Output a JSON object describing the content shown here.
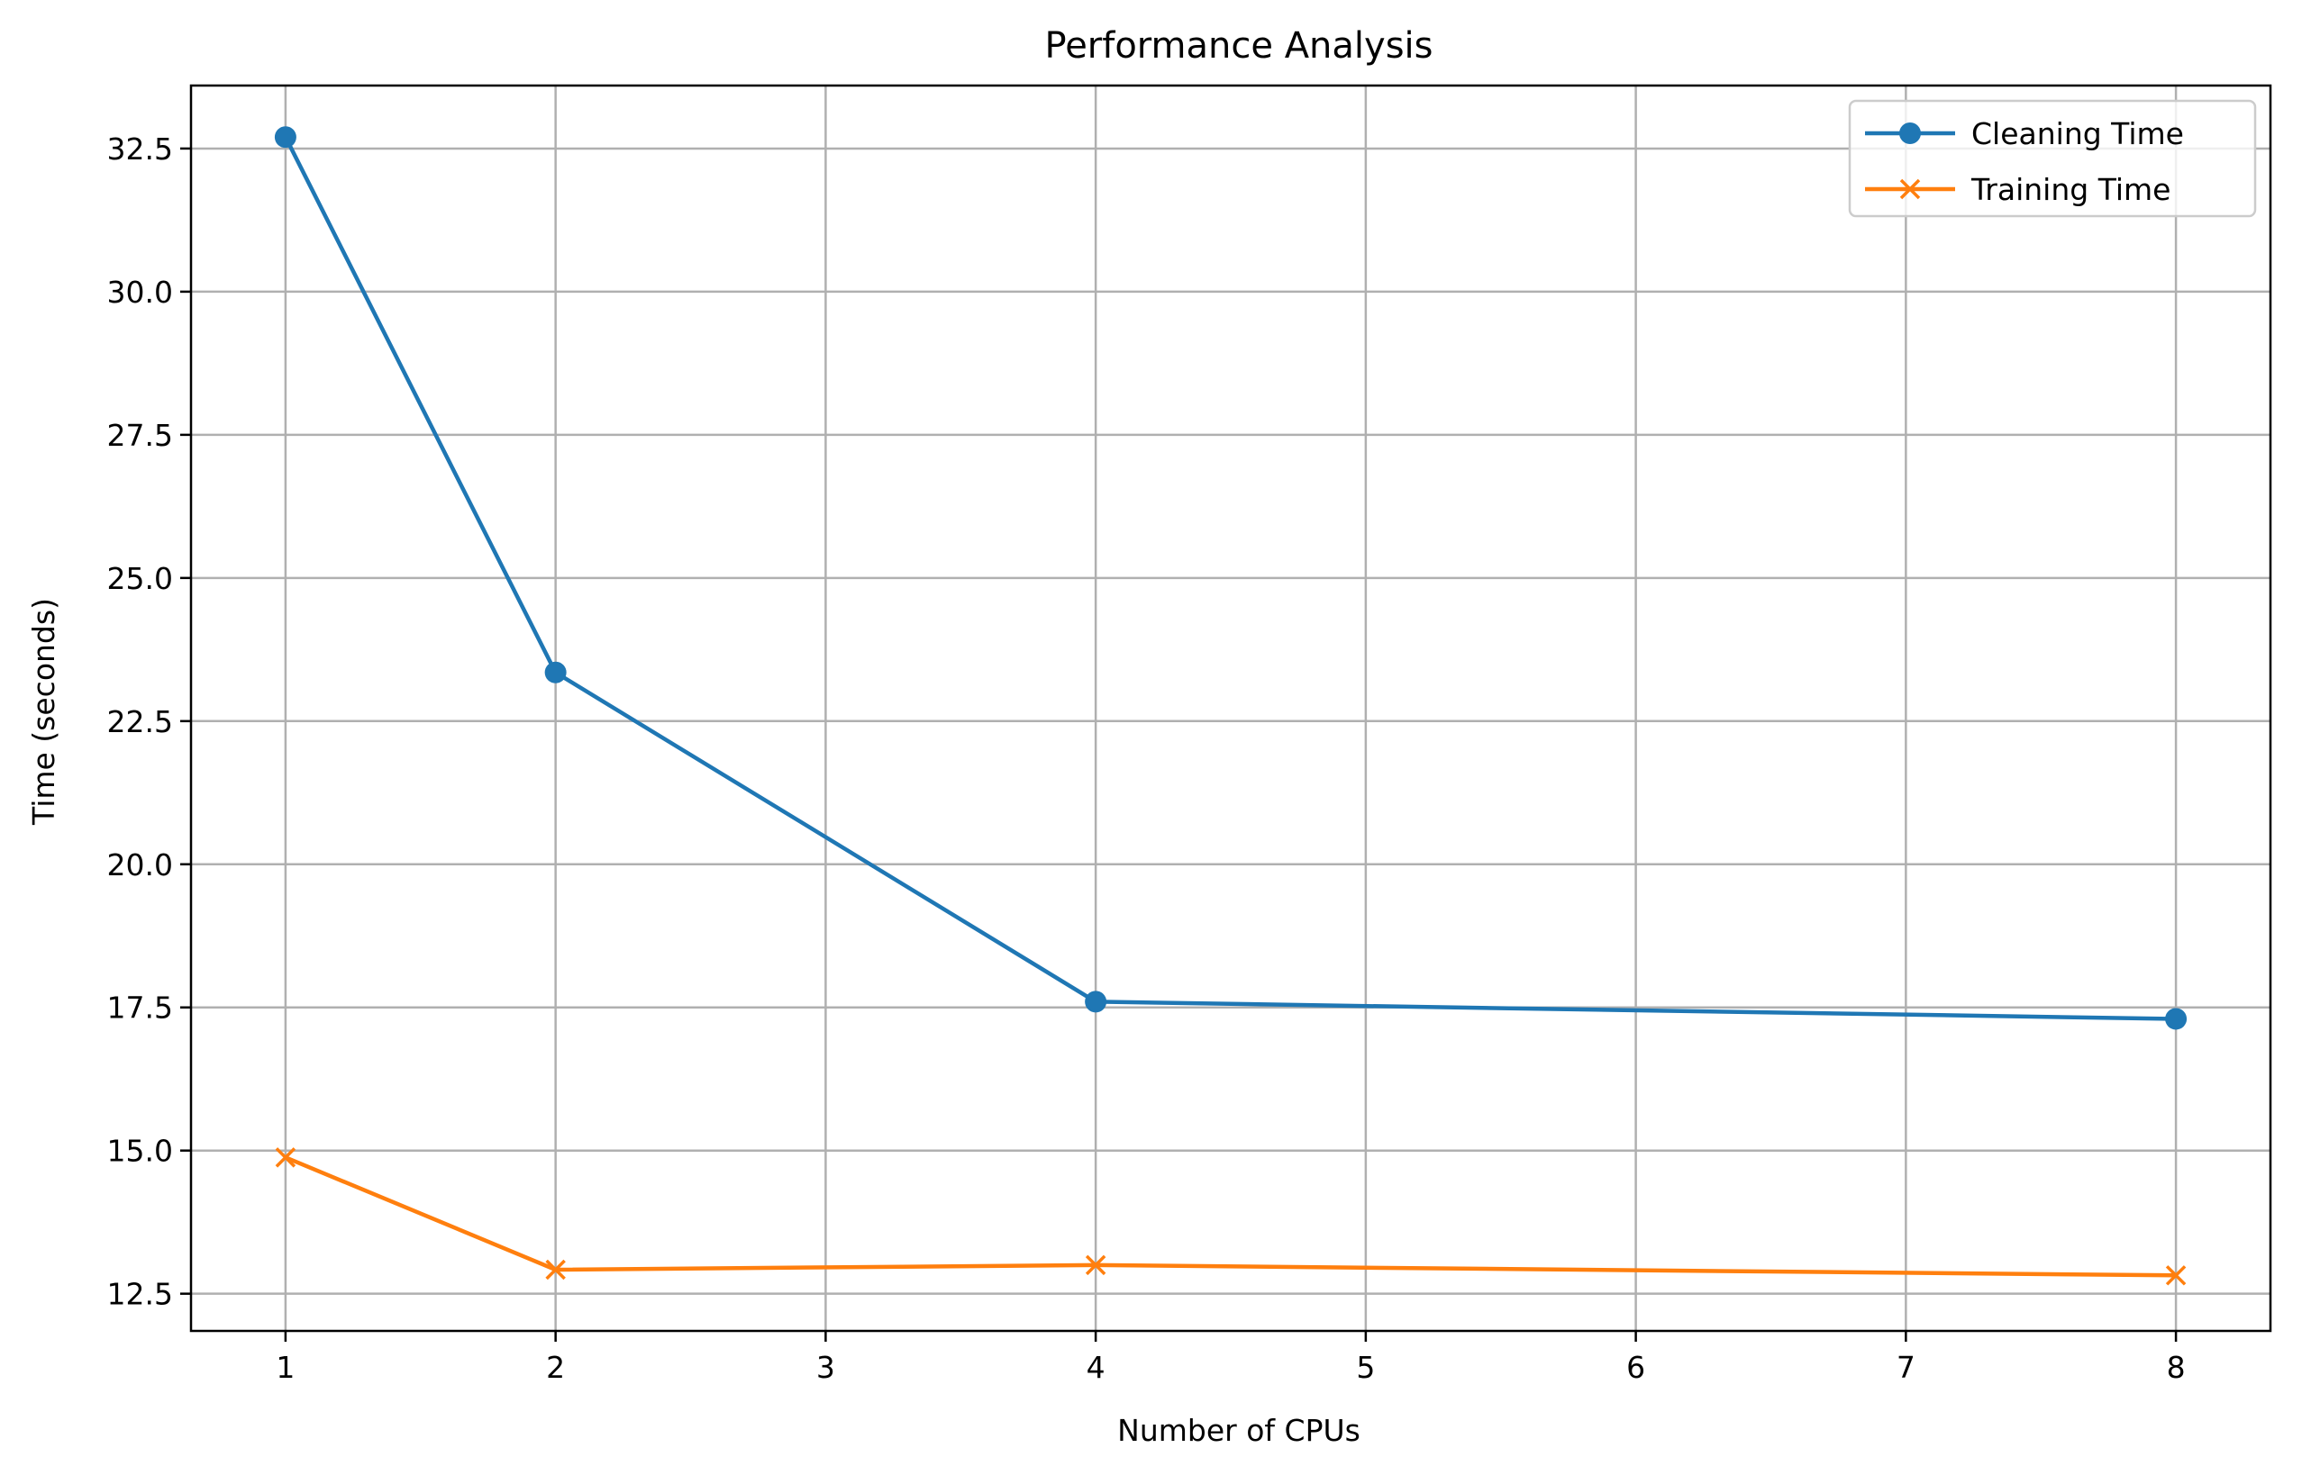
{
  "chart_data": {
    "type": "line",
    "title": "Performance Analysis",
    "xlabel": "Number of CPUs",
    "ylabel": "Time (seconds)",
    "x": [
      1,
      2,
      4,
      8
    ],
    "xlim": [
      0.65,
      8.35
    ],
    "ylim": [
      11.85,
      33.6
    ],
    "xticks": [
      1,
      2,
      3,
      4,
      5,
      6,
      7,
      8
    ],
    "yticks": [
      12.5,
      15.0,
      17.5,
      20.0,
      22.5,
      25.0,
      27.5,
      30.0,
      32.5
    ],
    "grid": true,
    "legend_position": "top-right",
    "series": [
      {
        "name": "Cleaning Time",
        "values": [
          32.7,
          23.35,
          17.6,
          17.3
        ],
        "color": "#1f77b4",
        "marker": "circle"
      },
      {
        "name": "Training Time",
        "values": [
          14.88,
          12.92,
          13.0,
          12.82
        ],
        "color": "#ff7f0e",
        "marker": "x"
      }
    ]
  }
}
